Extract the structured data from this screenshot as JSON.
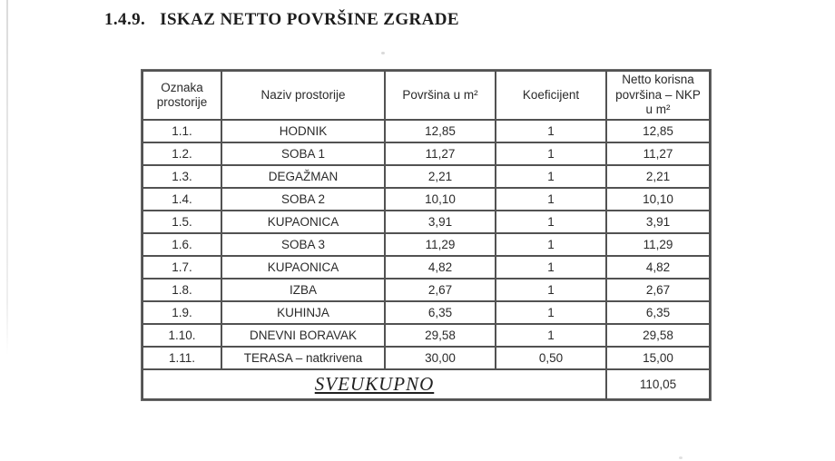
{
  "page": {
    "title_number": "1.4.9.",
    "title_text": "ISKAZ NETTO POVRŠINE ZGRADE"
  },
  "table": {
    "headers": {
      "col1": "Oznaka prostorije",
      "col2": "Naziv prostorije",
      "col3": "Površina u m²",
      "col4": "Koeficijent",
      "col5": "Netto korisna površina – NKP u m²"
    },
    "rows": [
      {
        "code": "1.1.",
        "name": "HODNIK",
        "area": "12,85",
        "coef": "1",
        "nkp": "12,85"
      },
      {
        "code": "1.2.",
        "name": "SOBA 1",
        "area": "11,27",
        "coef": "1",
        "nkp": "11,27"
      },
      {
        "code": "1.3.",
        "name": "DEGAŽMAN",
        "area": "2,21",
        "coef": "1",
        "nkp": "2,21"
      },
      {
        "code": "1.4.",
        "name": "SOBA 2",
        "area": "10,10",
        "coef": "1",
        "nkp": "10,10"
      },
      {
        "code": "1.5.",
        "name": "KUPAONICA",
        "area": "3,91",
        "coef": "1",
        "nkp": "3,91"
      },
      {
        "code": "1.6.",
        "name": "SOBA 3",
        "area": "11,29",
        "coef": "1",
        "nkp": "11,29"
      },
      {
        "code": "1.7.",
        "name": "KUPAONICA",
        "area": "4,82",
        "coef": "1",
        "nkp": "4,82"
      },
      {
        "code": "1.8.",
        "name": "IZBA",
        "area": "2,67",
        "coef": "1",
        "nkp": "2,67"
      },
      {
        "code": "1.9.",
        "name": "KUHINJA",
        "area": "6,35",
        "coef": "1",
        "nkp": "6,35"
      },
      {
        "code": "1.10.",
        "name": "DNEVNI BORAVAK",
        "area": "29,58",
        "coef": "1",
        "nkp": "29,58"
      },
      {
        "code": "1.11.",
        "name": "TERASA – natkrivena",
        "area": "30,00",
        "coef": "0,50",
        "nkp": "15,00"
      }
    ],
    "total_label": "SVEUKUPNO",
    "total_value": "110,05"
  },
  "colors": {
    "border": "#525252",
    "text": "#2a2a2a",
    "background": "#ffffff"
  }
}
